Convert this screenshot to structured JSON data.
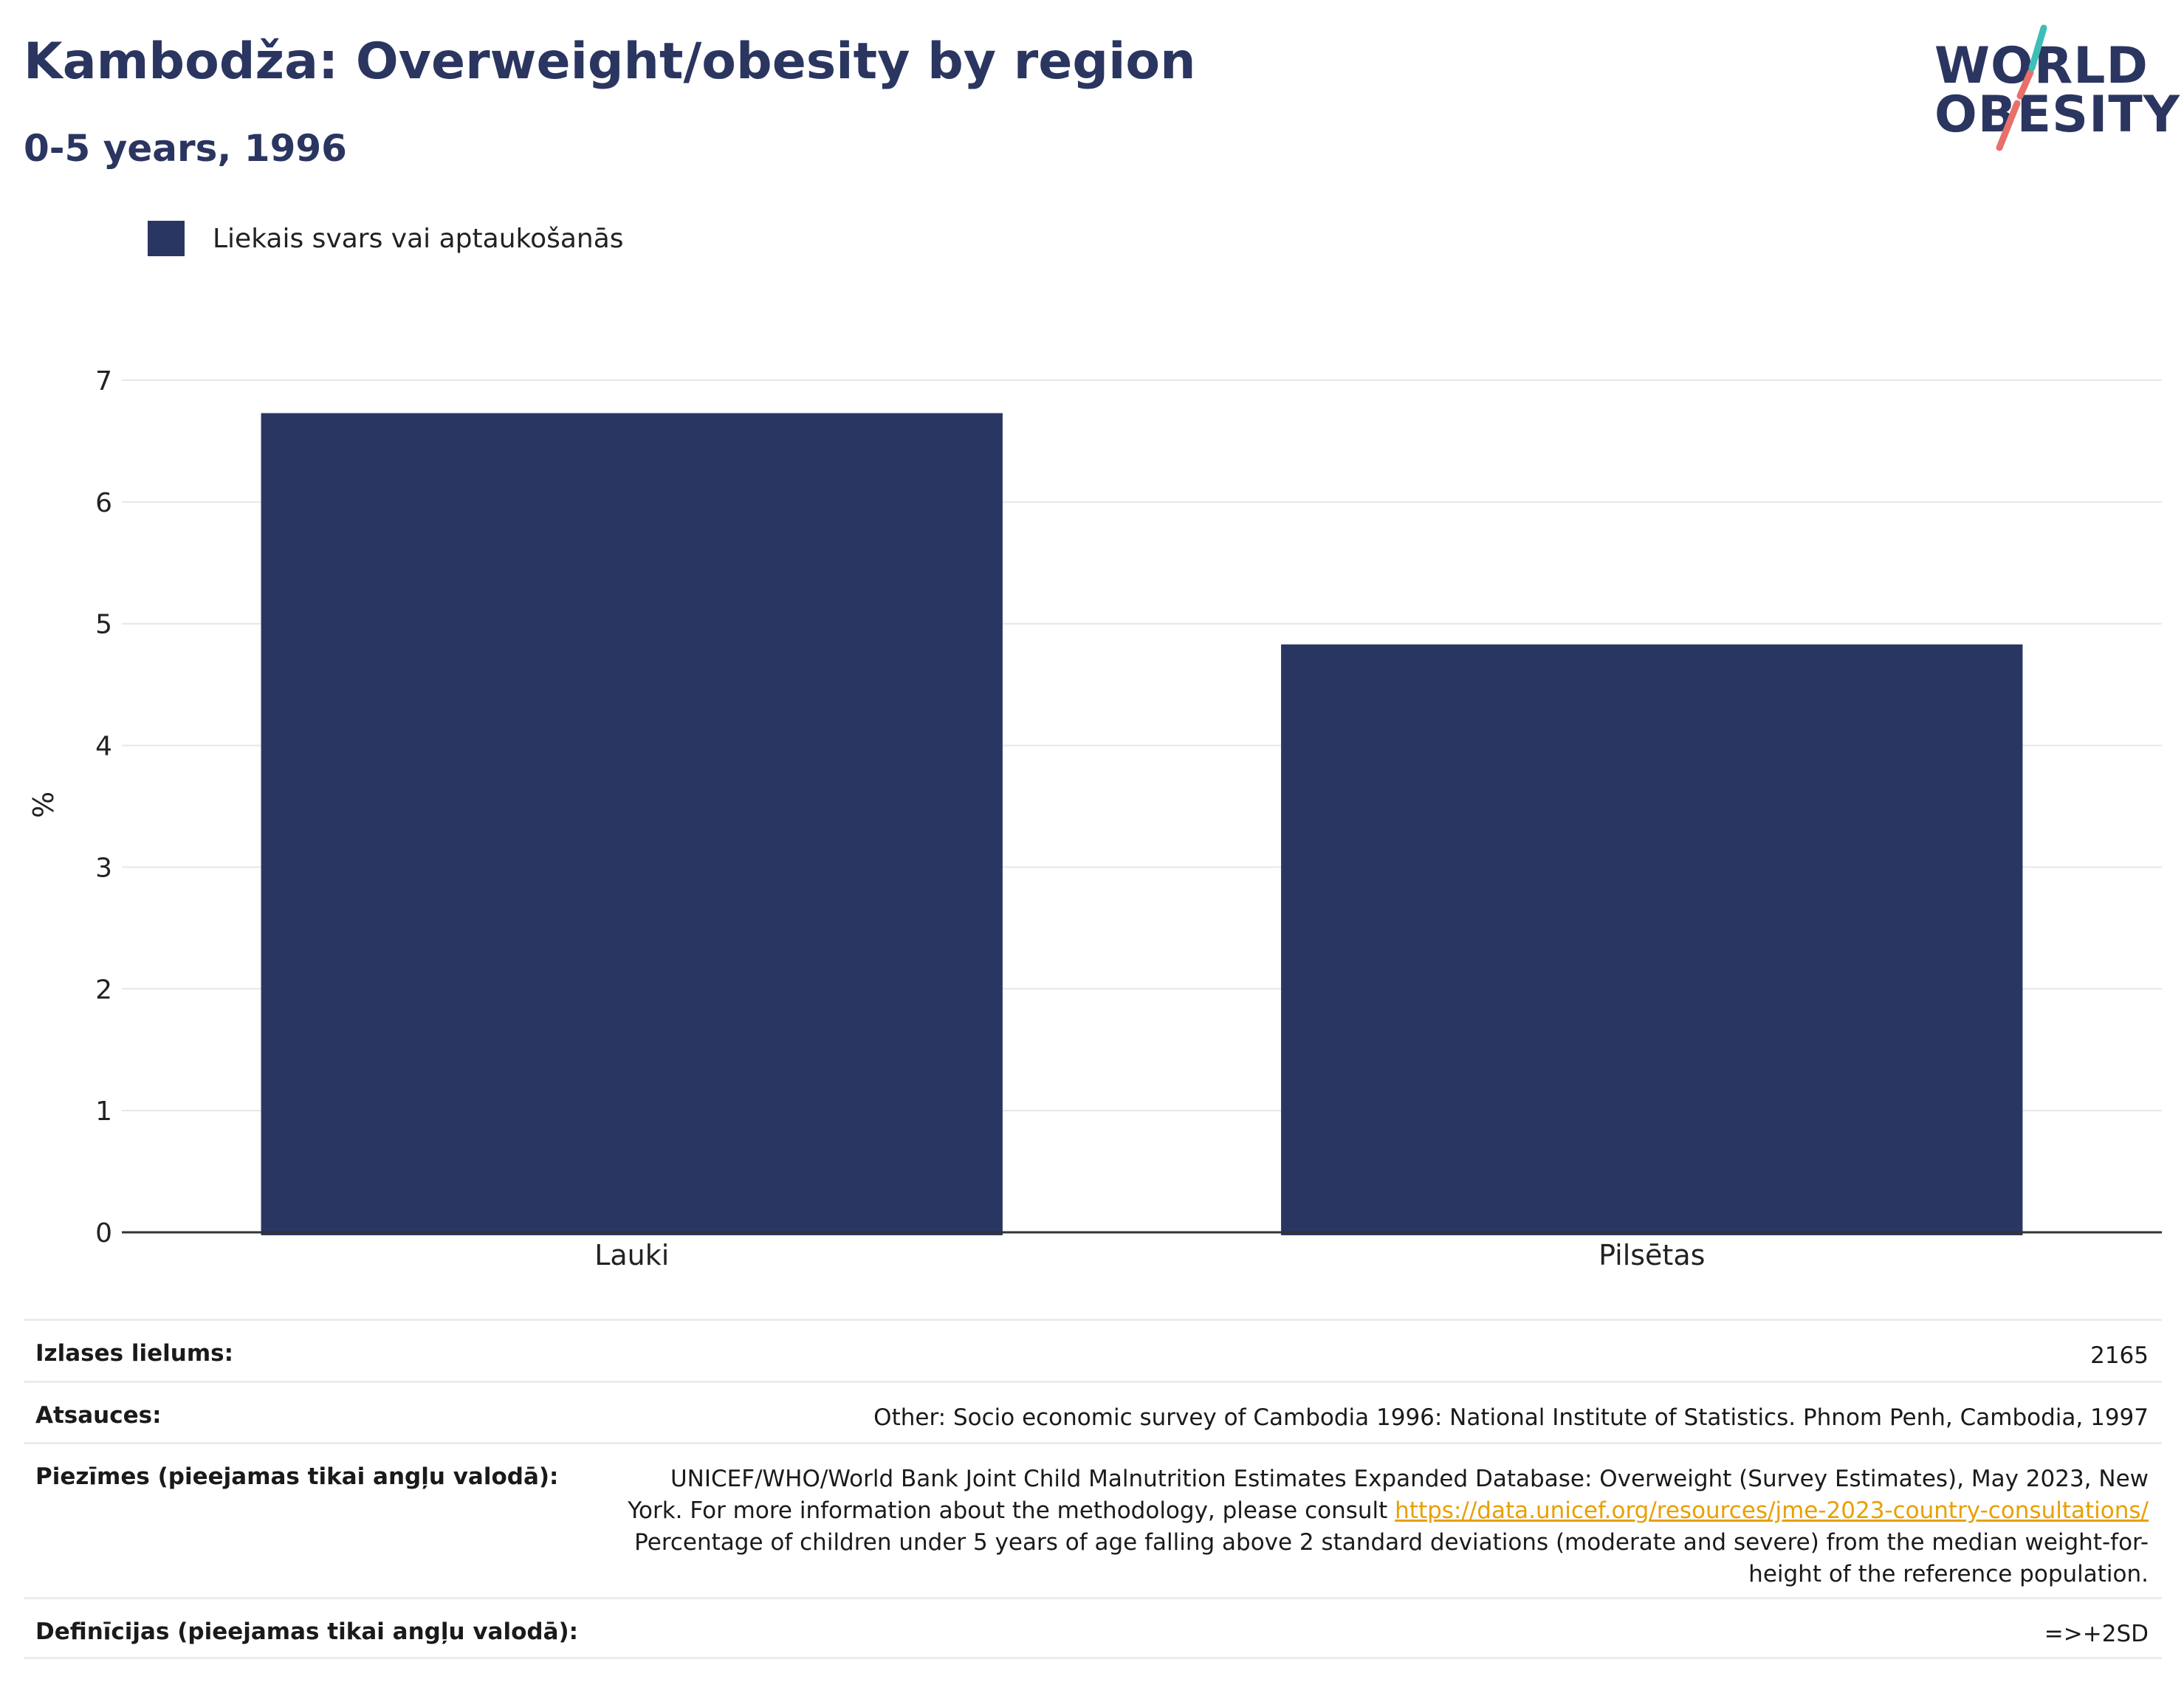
{
  "header": {
    "title": "Kambodža: Overweight/obesity by region",
    "subtitle": "0-5 years, 1996"
  },
  "logo": {
    "line1": "WORLD",
    "line2": "OBESITY",
    "colors": {
      "text": "#2a3560",
      "slash_top": "#3dbfb8",
      "slash_bottom": "#e8706a"
    }
  },
  "legend": {
    "items": [
      {
        "label": "Liekais svars vai aptaukošanās",
        "color": "#2a3662"
      }
    ]
  },
  "chart_data": {
    "type": "bar",
    "title": "Kambodža: Overweight/obesity by region",
    "subtitle": "0-5 years, 1996",
    "categories": [
      "Lauki",
      "Pilsētas"
    ],
    "series": [
      {
        "name": "Liekais svars vai aptaukošanās",
        "values": [
          6.73,
          4.83
        ],
        "color": "#2a3662"
      }
    ],
    "xlabel": "",
    "ylabel": "%",
    "ylim": [
      0,
      7
    ],
    "yticks": [
      0,
      1,
      2,
      3,
      4,
      5,
      6,
      7
    ],
    "grid": true,
    "legend_position": "top-left"
  },
  "details": {
    "sample_size": {
      "label": "Izlases lielums:",
      "value": "2165"
    },
    "sources": {
      "label": "Atsauces:",
      "value": "Other: Socio economic survey of Cambodia 1996: National Institute of Statistics. Phnom Penh, Cambodia, 1997"
    },
    "notes": {
      "label": "Piezīmes (pieejamas tikai angļu valodā):",
      "text_before": "UNICEF/WHO/World Bank Joint Child Malnutrition Estimates Expanded Database: Overweight (Survey Estimates), May 2023, New York. For more information about the methodology, please consult ",
      "link": "https://data.unicef.org/resources/jme-2023-country-consultations/",
      "text_after": " Percentage of children under 5 years of age falling above 2 standard deviations (moderate and severe) from the median weight-for-height of the reference population."
    },
    "definitions": {
      "label": "Definīcijas (pieejamas tikai angļu valodā):",
      "value": "=>+2SD"
    }
  }
}
